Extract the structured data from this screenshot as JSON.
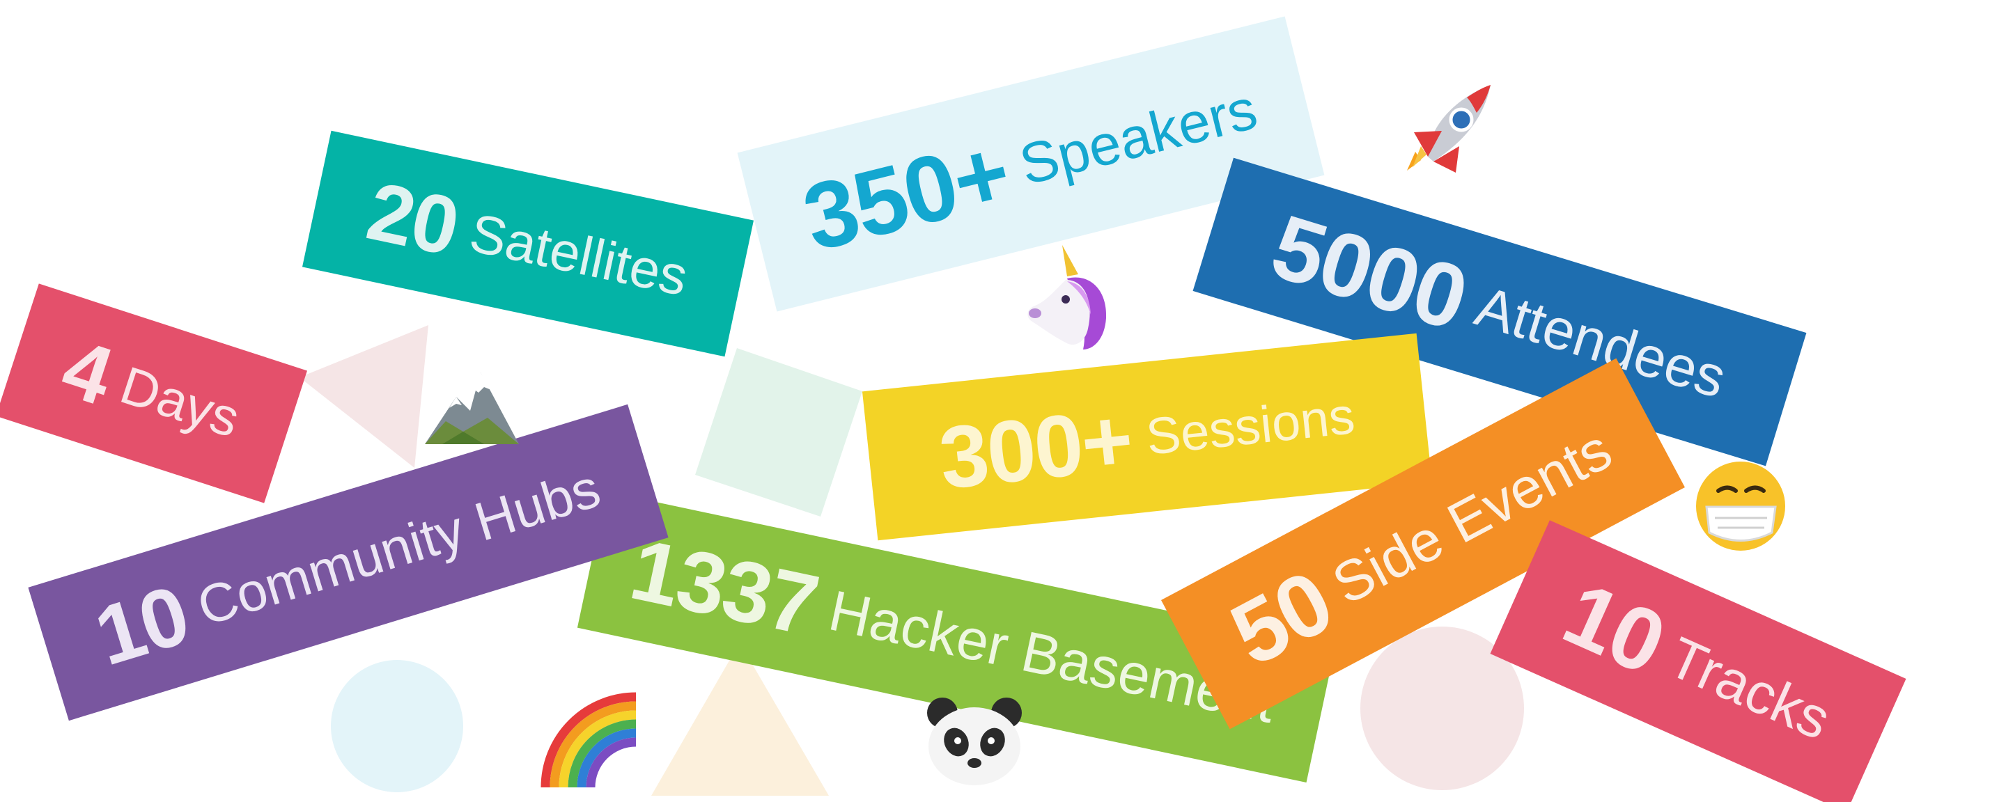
{
  "colors": {
    "teal": "#04b3a6",
    "light_blue": "#e3f4f9",
    "speakers_text": "#14a7d0",
    "dark_blue": "#1e6eb0",
    "red": "#e4506b",
    "purple": "#79569f",
    "green": "#8bc240",
    "yellow": "#f3d326",
    "orange": "#f48f25",
    "pale_pink": "#f5e5e6",
    "pale_green": "#e2f3ea",
    "pale_blue": "#e3f4f9",
    "pale_peach": "#fcf0dc"
  },
  "stats": {
    "satellites": {
      "number": "20",
      "label": "Satellites"
    },
    "speakers": {
      "number": "350+",
      "label": "Speakers"
    },
    "attendees": {
      "number": "5000",
      "label": "Attendees"
    },
    "days": {
      "number": "4",
      "label": "Days"
    },
    "sessions": {
      "number": "300+",
      "label": "Sessions"
    },
    "community_hubs": {
      "number": "10",
      "label": "Community Hubs"
    },
    "hacker_basement": {
      "number": "1337",
      "label": "Hacker Basement"
    },
    "side_events": {
      "number": "50",
      "label": "Side Events"
    },
    "tracks": {
      "number": "10",
      "label": "Tracks"
    }
  },
  "emojis": {
    "rocket": "rocket-icon",
    "unicorn": "unicorn-icon",
    "mountain": "mountain-icon",
    "mask_face": "face-with-mask-icon",
    "rainbow": "rainbow-icon",
    "panda": "panda-icon"
  }
}
